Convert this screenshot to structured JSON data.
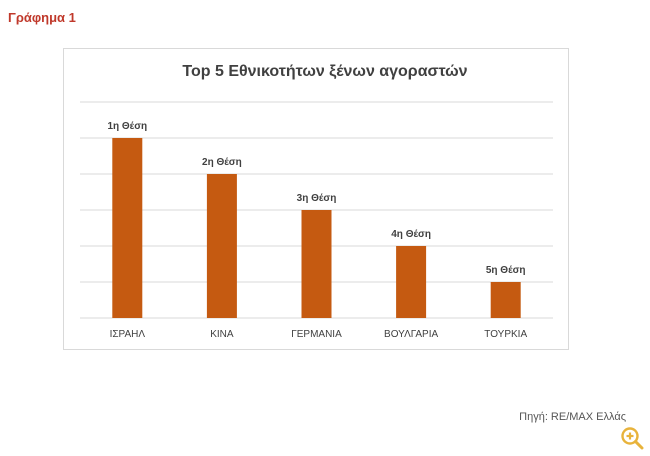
{
  "page": {
    "label": "Γράφημα 1",
    "source": "Πηγή: RE/MAX Ελλάς"
  },
  "colors": {
    "bar": "#c55a11",
    "grid": "#d9d9d9",
    "label": "#404040",
    "heading": "#c0392b",
    "zoom_icon": "#e8b33b"
  },
  "icons": {
    "zoom": "zoom-in-icon"
  },
  "chart_data": {
    "type": "bar",
    "title": "Top 5 Εθνικοτήτων ξένων αγοραστών",
    "categories": [
      "ΙΣΡΑΗΛ",
      "ΚΙΝΑ",
      "ΓΕΡΜΑΝΙΑ",
      "ΒΟΥΛΓΑΡΙΑ",
      "ΤΟΥΡΚΙΑ"
    ],
    "values": [
      5,
      4,
      3,
      2,
      1
    ],
    "data_labels": [
      "1η Θέση",
      "2η Θέση",
      "3η Θέση",
      "4η Θέση",
      "5η Θέση"
    ],
    "xlabel": "",
    "ylabel": "",
    "ylim": [
      0,
      6
    ],
    "grid": true,
    "legend": "none"
  }
}
